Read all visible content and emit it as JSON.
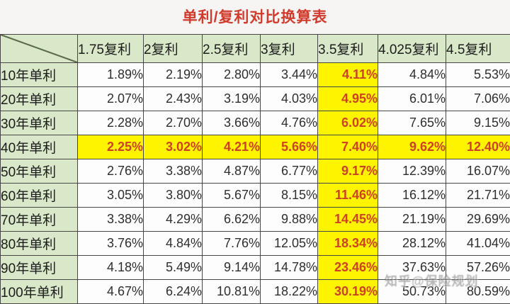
{
  "title": "单利/复利对比换算表",
  "table": {
    "corner_label": "",
    "columns": [
      "1.75复利",
      "2复利",
      "2.5复利",
      "3复利",
      "3.5复利",
      "4.025复利",
      "4.5复利"
    ],
    "rows": [
      {
        "label": "10年单利",
        "values": [
          "1.89%",
          "2.19%",
          "2.80%",
          "3.44%",
          "4.11%",
          "4.84%",
          "5.53%"
        ]
      },
      {
        "label": "20年单利",
        "values": [
          "2.07%",
          "2.43%",
          "3.19%",
          "4.03%",
          "4.95%",
          "6.01%",
          "7.06%"
        ]
      },
      {
        "label": "30年单利",
        "values": [
          "2.28%",
          "2.70%",
          "3.66%",
          "4.76%",
          "6.02%",
          "7.65%",
          "9.15%"
        ]
      },
      {
        "label": "40年单利",
        "values": [
          "2.25%",
          "3.02%",
          "4.21%",
          "5.66%",
          "7.40%",
          "9.62%",
          "12.40%"
        ]
      },
      {
        "label": "50年单利",
        "values": [
          "2.76%",
          "3.38%",
          "4.87%",
          "6.77%",
          "9.17%",
          "12.39%",
          "16.07%"
        ]
      },
      {
        "label": "60年单利",
        "values": [
          "3.05%",
          "3.80%",
          "5.67%",
          "8.15%",
          "11.46%",
          "16.12%",
          "21.71%"
        ]
      },
      {
        "label": "70年单利",
        "values": [
          "3.38%",
          "4.29%",
          "6.62%",
          "9.88%",
          "14.45%",
          "21.19%",
          "29.69%"
        ]
      },
      {
        "label": "80年单利",
        "values": [
          "3.76%",
          "4.84%",
          "7.76%",
          "12.05%",
          "18.34%",
          "28.12%",
          "41.04%"
        ]
      },
      {
        "label": "90年单利",
        "values": [
          "4.18%",
          "5.49%",
          "9.14%",
          "14.78%",
          "23.46%",
          "37.63%",
          "57.26%"
        ]
      },
      {
        "label": "100年单利",
        "values": [
          "4.67%",
          "6.24%",
          "10.81%",
          "18.22%",
          "30.19%",
          "50.73%",
          "80.59%"
        ]
      }
    ],
    "highlight_column": "3.5复利",
    "highlight_column_index": 4,
    "highlight_row": "40年单利",
    "highlight_row_index": 3
  },
  "watermark": "知乎@保险规划",
  "colors": {
    "title_red": "#d23a2c",
    "header_green": "#d9e8c9",
    "highlight_yellow": "#fff400",
    "highlight_text_red": "#cd4125",
    "grid_border": "#474747",
    "body_text": "#2e2e2e",
    "page_background": "#f6f5f3"
  },
  "chart_data": {
    "type": "table",
    "title": "单利/复利对比换算表",
    "unit": "%",
    "columns": [
      "1.75复利",
      "2复利",
      "2.5复利",
      "3复利",
      "3.5复利",
      "4.025复利",
      "4.5复利"
    ],
    "row_labels": [
      "10年单利",
      "20年单利",
      "30年单利",
      "40年单利",
      "50年单利",
      "60年单利",
      "70年单利",
      "80年单利",
      "90年单利",
      "100年单利"
    ],
    "values": [
      [
        1.89,
        2.19,
        2.8,
        3.44,
        4.11,
        4.84,
        5.53
      ],
      [
        2.07,
        2.43,
        3.19,
        4.03,
        4.95,
        6.01,
        7.06
      ],
      [
        2.28,
        2.7,
        3.66,
        4.76,
        6.02,
        7.65,
        9.15
      ],
      [
        2.25,
        3.02,
        4.21,
        5.66,
        7.4,
        9.62,
        12.4
      ],
      [
        2.76,
        3.38,
        4.87,
        6.77,
        9.17,
        12.39,
        16.07
      ],
      [
        3.05,
        3.8,
        5.67,
        8.15,
        11.46,
        16.12,
        21.71
      ],
      [
        3.38,
        4.29,
        6.62,
        9.88,
        14.45,
        21.19,
        29.69
      ],
      [
        3.76,
        4.84,
        7.76,
        12.05,
        18.34,
        28.12,
        41.04
      ],
      [
        4.18,
        5.49,
        9.14,
        14.78,
        23.46,
        37.63,
        57.26
      ],
      [
        4.67,
        6.24,
        10.81,
        18.22,
        30.19,
        50.73,
        80.59
      ]
    ],
    "highlighted_column": "3.5复利",
    "highlighted_row": "40年单利",
    "legend_position": "none",
    "grid": true
  }
}
